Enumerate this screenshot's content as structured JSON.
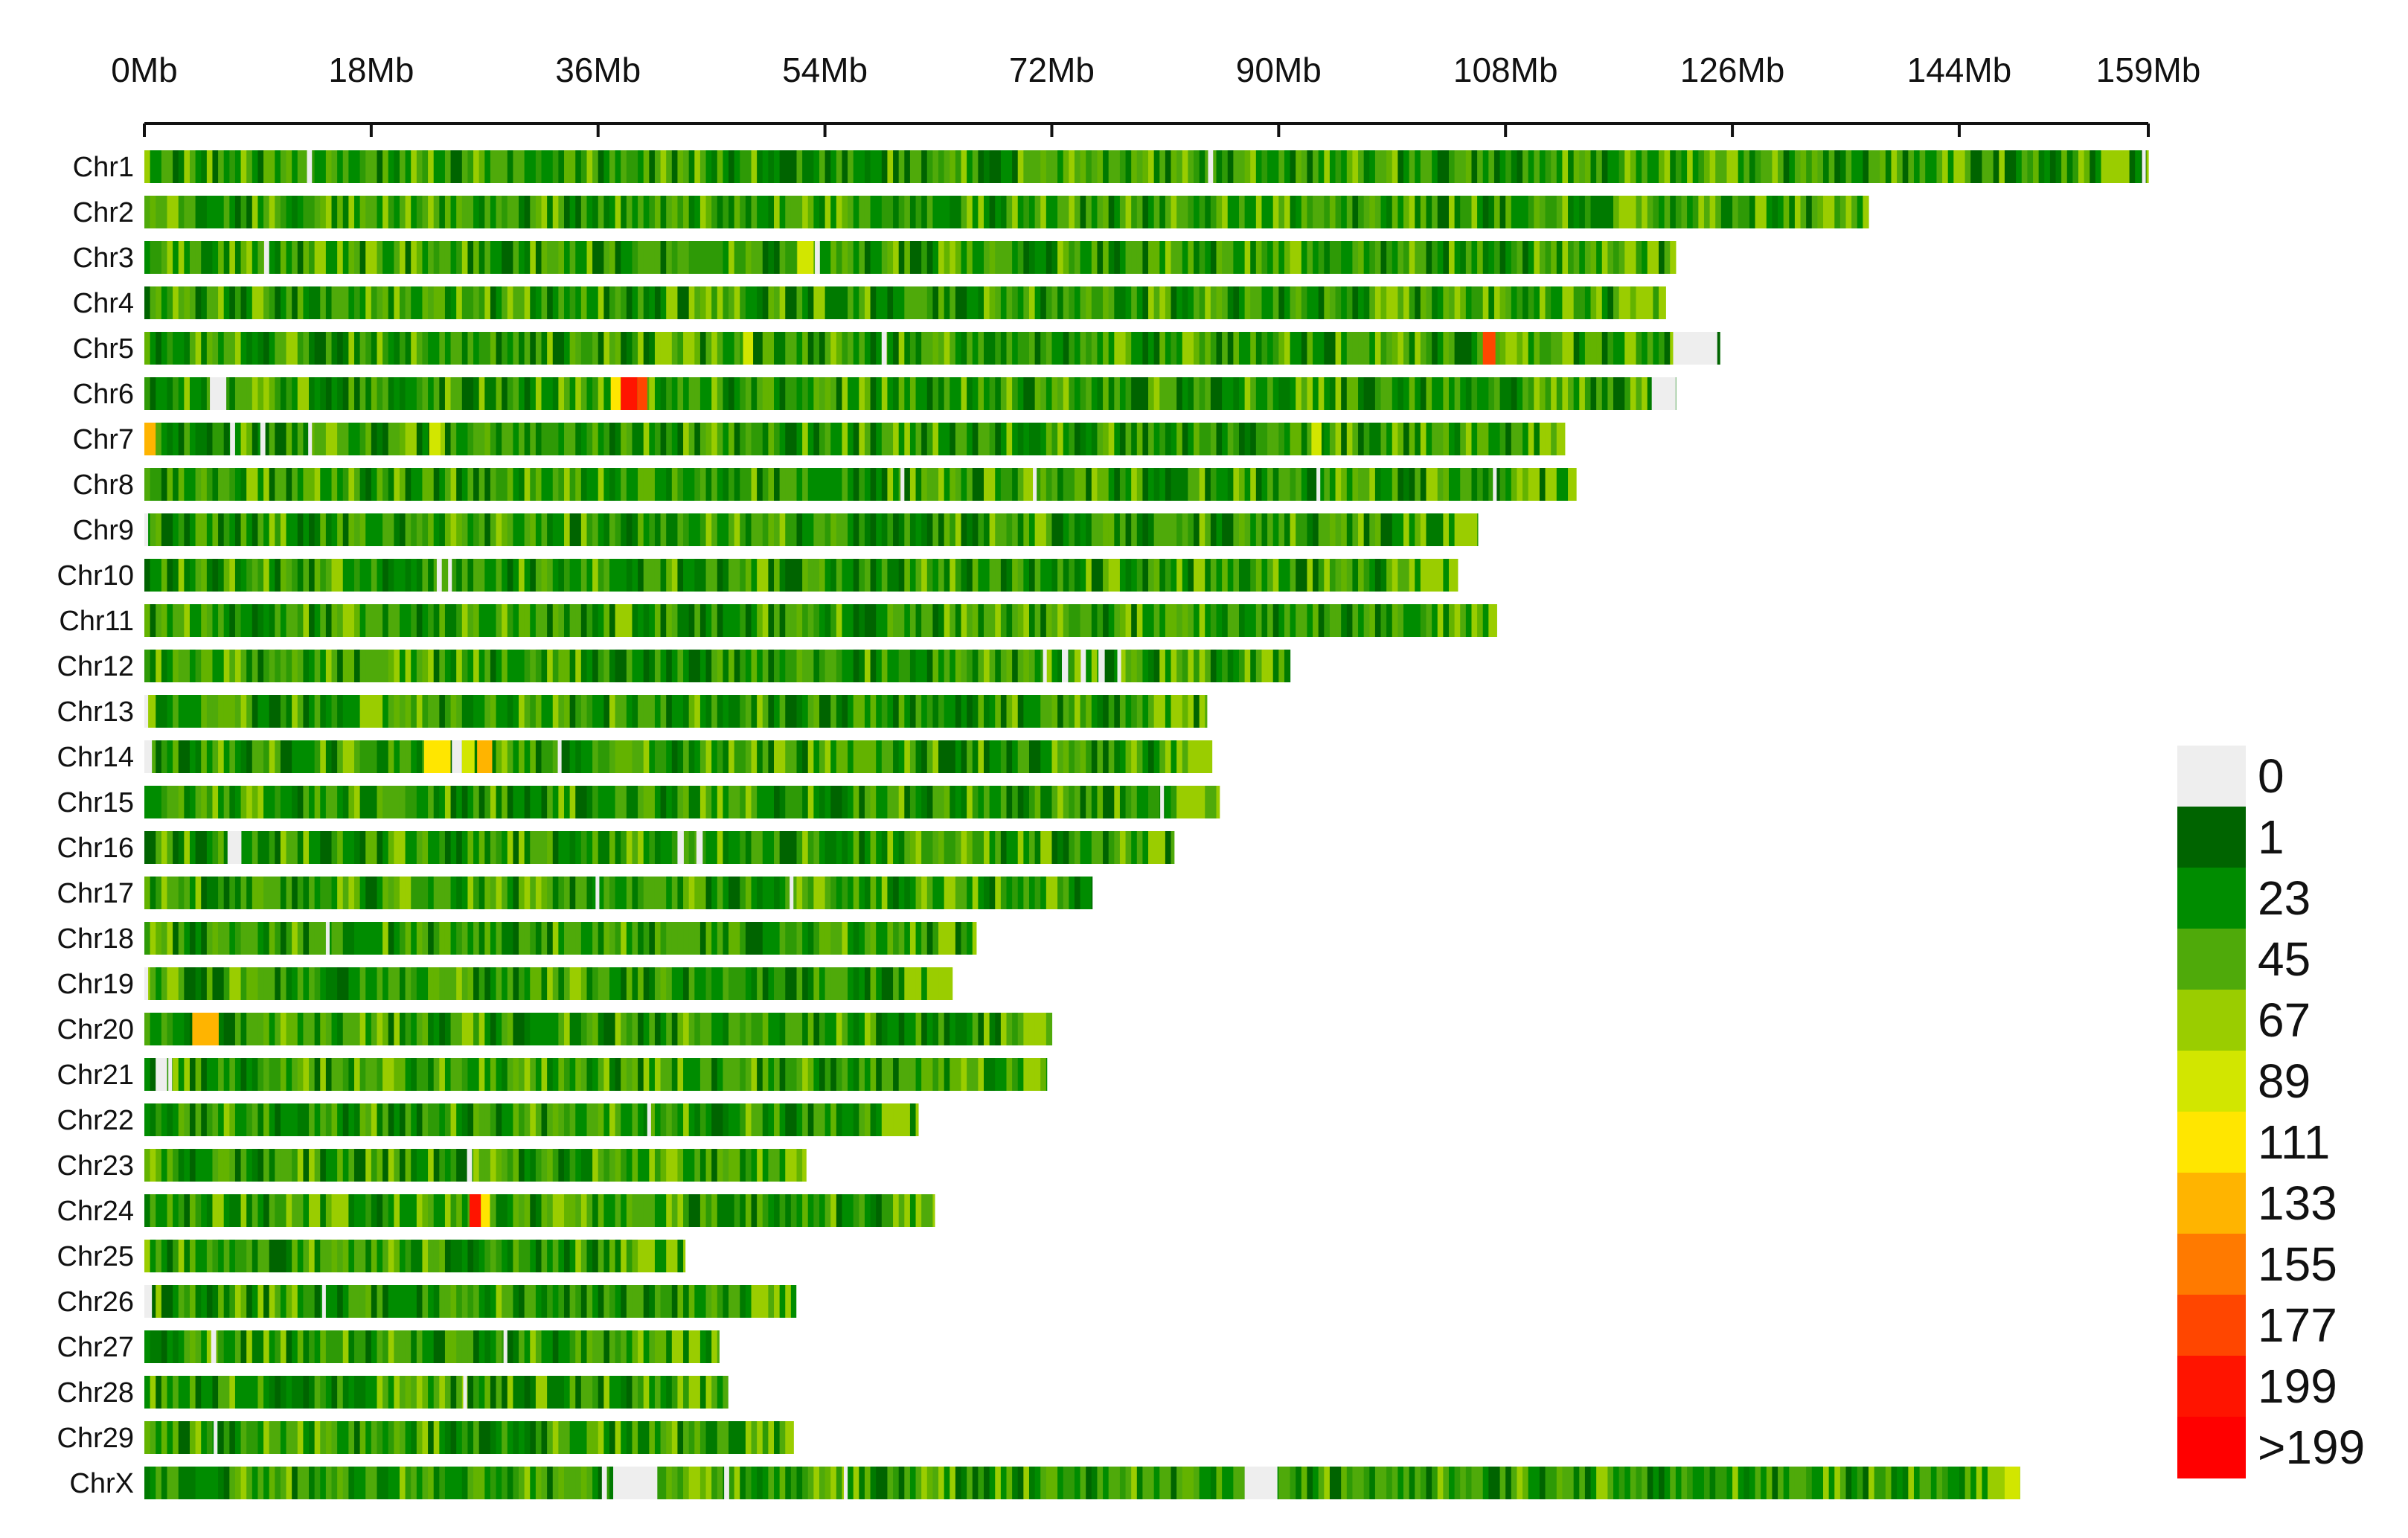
{
  "chart_data": {
    "type": "heatmap",
    "title": "",
    "xlabel": "",
    "ylabel": "",
    "x_unit": "Mb",
    "xlim": [
      0,
      159
    ],
    "x_ticks": [
      {
        "value": 0,
        "label": "0Mb"
      },
      {
        "value": 18,
        "label": "18Mb"
      },
      {
        "value": 36,
        "label": "36Mb"
      },
      {
        "value": 54,
        "label": "54Mb"
      },
      {
        "value": 72,
        "label": "72Mb"
      },
      {
        "value": 90,
        "label": "90Mb"
      },
      {
        "value": 108,
        "label": "108Mb"
      },
      {
        "value": 126,
        "label": "126Mb"
      },
      {
        "value": 144,
        "label": "144Mb"
      },
      {
        "value": 159,
        "label": "159Mb"
      }
    ],
    "chromosomes": [
      {
        "name": "Chr1",
        "length": 159.0,
        "variant": 0,
        "features": [
          [
            12.9,
            0.4,
            0
          ],
          [
            84.4,
            0.4,
            0
          ],
          [
            158.5,
            0.3,
            0
          ]
        ]
      },
      {
        "name": "Chr2",
        "length": 136.8,
        "variant": 1,
        "features": []
      },
      {
        "name": "Chr3",
        "length": 121.5,
        "variant": 2,
        "features": [
          [
            9.5,
            0.4,
            0
          ],
          [
            51.8,
            1.3,
            110
          ],
          [
            53.2,
            0.4,
            0
          ]
        ]
      },
      {
        "name": "Chr4",
        "length": 120.7,
        "variant": 3,
        "features": []
      },
      {
        "name": "Chr5",
        "length": 125.0,
        "variant": 4,
        "features": [
          [
            47.5,
            0.8,
            95
          ],
          [
            58.5,
            0.4,
            0
          ],
          [
            106.2,
            1.0,
            180
          ],
          [
            121.3,
            3.5,
            0
          ]
        ]
      },
      {
        "name": "Chr6",
        "length": 121.5,
        "variant": 5,
        "features": [
          [
            5.2,
            1.3,
            0
          ],
          [
            37.0,
            0.8,
            130
          ],
          [
            37.8,
            1.3,
            200
          ],
          [
            39.1,
            0.8,
            180
          ],
          [
            119.6,
            1.9,
            0
          ]
        ]
      },
      {
        "name": "Chr7",
        "length": 112.7,
        "variant": 6,
        "features": [
          [
            0.0,
            0.9,
            140
          ],
          [
            6.8,
            0.4,
            0
          ],
          [
            9.2,
            0.4,
            0
          ],
          [
            13.0,
            0.3,
            0
          ],
          [
            22.6,
            0.9,
            105
          ],
          [
            92.6,
            0.8,
            90
          ]
        ]
      },
      {
        "name": "Chr8",
        "length": 113.6,
        "variant": 7,
        "features": [
          [
            60.0,
            0.3,
            0
          ],
          [
            70.5,
            0.3,
            0
          ],
          [
            93.0,
            0.3,
            0
          ],
          [
            107.0,
            0.3,
            0
          ]
        ]
      },
      {
        "name": "Chr9",
        "length": 105.8,
        "variant": 8,
        "features": [
          [
            0.0,
            0.3,
            0
          ]
        ]
      },
      {
        "name": "Chr10",
        "length": 104.2,
        "variant": 9,
        "features": [
          [
            23.2,
            0.4,
            0
          ],
          [
            24.1,
            0.3,
            0
          ]
        ]
      },
      {
        "name": "Chr11",
        "length": 107.3,
        "variant": 10,
        "features": []
      },
      {
        "name": "Chr12",
        "length": 90.9,
        "variant": 11,
        "features": [
          [
            71.3,
            0.3,
            0
          ],
          [
            72.8,
            0.5,
            0
          ],
          [
            74.3,
            0.4,
            0
          ],
          [
            75.7,
            0.5,
            0
          ],
          [
            77.2,
            0.3,
            0
          ]
        ]
      },
      {
        "name": "Chr13",
        "length": 84.3,
        "variant": 12,
        "features": [
          [
            0.0,
            0.3,
            0
          ]
        ]
      },
      {
        "name": "Chr14",
        "length": 84.7,
        "variant": 13,
        "features": [
          [
            0.0,
            0.6,
            0
          ],
          [
            22.2,
            2.1,
            125
          ],
          [
            24.4,
            0.8,
            0
          ],
          [
            25.2,
            1.0,
            90
          ],
          [
            26.4,
            1.2,
            150
          ],
          [
            32.8,
            0.3,
            0
          ]
        ]
      },
      {
        "name": "Chr15",
        "length": 85.3,
        "variant": 14,
        "features": [
          [
            80.6,
            0.3,
            0
          ]
        ]
      },
      {
        "name": "Chr16",
        "length": 81.7,
        "variant": 15,
        "features": [
          [
            6.6,
            1.1,
            0
          ],
          [
            42.3,
            0.5,
            0
          ],
          [
            43.8,
            0.5,
            0
          ]
        ]
      },
      {
        "name": "Chr17",
        "length": 75.2,
        "variant": 16,
        "features": [
          [
            35.8,
            0.3,
            0
          ],
          [
            51.2,
            0.3,
            0
          ]
        ]
      },
      {
        "name": "Chr18",
        "length": 66.0,
        "variant": 17,
        "features": [
          [
            14.4,
            0.3,
            0
          ]
        ]
      },
      {
        "name": "Chr19",
        "length": 64.1,
        "variant": 18,
        "features": [
          [
            0.0,
            0.3,
            0
          ]
        ]
      },
      {
        "name": "Chr20",
        "length": 72.0,
        "variant": 19,
        "features": [
          [
            3.8,
            2.1,
            150
          ]
        ]
      },
      {
        "name": "Chr21",
        "length": 71.6,
        "variant": 20,
        "features": [
          [
            0.9,
            0.9,
            0
          ],
          [
            1.9,
            0.3,
            0
          ]
        ]
      },
      {
        "name": "Chr22",
        "length": 61.4,
        "variant": 21,
        "features": [
          [
            39.9,
            0.3,
            0
          ]
        ]
      },
      {
        "name": "Chr23",
        "length": 52.5,
        "variant": 22,
        "features": [
          [
            25.6,
            0.4,
            0
          ]
        ]
      },
      {
        "name": "Chr24",
        "length": 62.7,
        "variant": 23,
        "features": [
          [
            25.8,
            0.9,
            200
          ],
          [
            26.7,
            0.7,
            120
          ]
        ]
      },
      {
        "name": "Chr25",
        "length": 42.9,
        "variant": 24,
        "features": []
      },
      {
        "name": "Chr26",
        "length": 51.7,
        "variant": 25,
        "features": [
          [
            0.0,
            0.6,
            0
          ],
          [
            14.1,
            0.3,
            0
          ]
        ]
      },
      {
        "name": "Chr27",
        "length": 45.6,
        "variant": 26,
        "features": [
          [
            5.3,
            0.4,
            0
          ],
          [
            28.5,
            0.3,
            0
          ]
        ]
      },
      {
        "name": "Chr28",
        "length": 46.3,
        "variant": 27,
        "features": [
          [
            25.3,
            0.3,
            0
          ]
        ]
      },
      {
        "name": "Chr29",
        "length": 51.5,
        "variant": 28,
        "features": [
          [
            5.5,
            0.3,
            0
          ]
        ]
      },
      {
        "name": "ChrX",
        "length": 148.8,
        "variant": 29,
        "features": [
          [
            36.3,
            0.4,
            0
          ],
          [
            37.2,
            3.5,
            0
          ],
          [
            46.0,
            0.4,
            0
          ],
          [
            55.5,
            0.3,
            0
          ],
          [
            87.3,
            2.6,
            0
          ],
          [
            147.6,
            1.2,
            110
          ]
        ]
      }
    ],
    "legend": {
      "placement": "right-bottom",
      "bins": [
        {
          "label": "0",
          "color": "#eeeeee"
        },
        {
          "label": "1",
          "color": "#006400"
        },
        {
          "label": "23",
          "color": "#008c00"
        },
        {
          "label": "45",
          "color": "#4faa0a"
        },
        {
          "label": "67",
          "color": "#9acd00"
        },
        {
          "label": "89",
          "color": "#d2e600"
        },
        {
          "label": "111",
          "color": "#ffe600"
        },
        {
          "label": "133",
          "color": "#ffb400"
        },
        {
          "label": "155",
          "color": "#ff7a00"
        },
        {
          "label": "177",
          "color": "#ff4600"
        },
        {
          "label": "199",
          "color": "#ff1400"
        },
        {
          "label": ">199",
          "color": "#ff0000"
        }
      ]
    }
  }
}
